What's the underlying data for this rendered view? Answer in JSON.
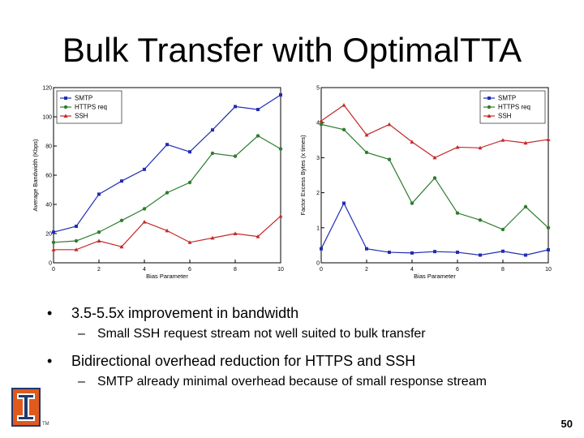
{
  "slide": {
    "title": "Bulk Transfer with OptimalTTA",
    "page_number": "50",
    "logo_icon": "illinois-block-i-logo",
    "trademark": "TM"
  },
  "bullets": [
    {
      "text": "3.5-5.5x improvement in bandwidth",
      "sub": [
        "Small SSH request stream not well suited to bulk transfer"
      ]
    },
    {
      "text": "Bidirectional overhead reduction for HTTPS and SSH",
      "sub": [
        "SMTP already minimal overhead because of small response stream"
      ]
    }
  ],
  "chart_data": [
    {
      "type": "line",
      "xlabel": "Bias Parameter",
      "ylabel": "Average Bandwidth (Kbps)",
      "xlim": [
        0,
        10
      ],
      "ylim": [
        0,
        120
      ],
      "xticks": [
        0,
        2,
        4,
        6,
        8,
        10
      ],
      "yticks": [
        0,
        20,
        40,
        60,
        80,
        100,
        120
      ],
      "grid": false,
      "legend": "top-left",
      "x": [
        0,
        1,
        2,
        3,
        4,
        5,
        6,
        7,
        8,
        9,
        10
      ],
      "series": [
        {
          "name": "SMTP",
          "color": "#1f2db5",
          "marker": "square",
          "values": [
            21,
            25,
            47,
            56,
            64,
            81,
            76,
            91,
            107,
            105,
            115
          ]
        },
        {
          "name": "HTTPS req",
          "color": "#2e7d2e",
          "marker": "circle",
          "values": [
            14,
            15,
            21,
            29,
            37,
            48,
            55,
            75,
            73,
            87,
            78
          ]
        },
        {
          "name": "SSH",
          "color": "#c62828",
          "marker": "triangle",
          "values": [
            9,
            9,
            15,
            11,
            28,
            22,
            14,
            17,
            20,
            18,
            32
          ]
        }
      ]
    },
    {
      "type": "line",
      "xlabel": "Bias Parameter",
      "ylabel": "Factor Excess Bytes (x times)",
      "xlim": [
        0,
        10
      ],
      "ylim": [
        0,
        5
      ],
      "xticks": [
        0,
        2,
        4,
        6,
        8,
        10
      ],
      "yticks": [
        0,
        1,
        2,
        3,
        4,
        5
      ],
      "grid": false,
      "legend": "top-right",
      "x": [
        0,
        1,
        2,
        3,
        4,
        5,
        6,
        7,
        8,
        9,
        10
      ],
      "series": [
        {
          "name": "SMTP",
          "color": "#1f2db5",
          "marker": "square",
          "values": [
            0.4,
            1.7,
            0.4,
            0.3,
            0.28,
            0.32,
            0.3,
            0.22,
            0.33,
            0.22,
            0.37
          ]
        },
        {
          "name": "HTTPS req",
          "color": "#2e7d2e",
          "marker": "circle",
          "values": [
            3.95,
            3.8,
            3.15,
            2.95,
            1.7,
            2.42,
            1.42,
            1.22,
            0.95,
            1.6,
            1.0
          ]
        },
        {
          "name": "SSH",
          "color": "#c62828",
          "marker": "triangle",
          "values": [
            4.05,
            4.5,
            3.65,
            3.95,
            3.45,
            3.0,
            3.3,
            3.28,
            3.5,
            3.42,
            3.52
          ]
        }
      ]
    }
  ]
}
